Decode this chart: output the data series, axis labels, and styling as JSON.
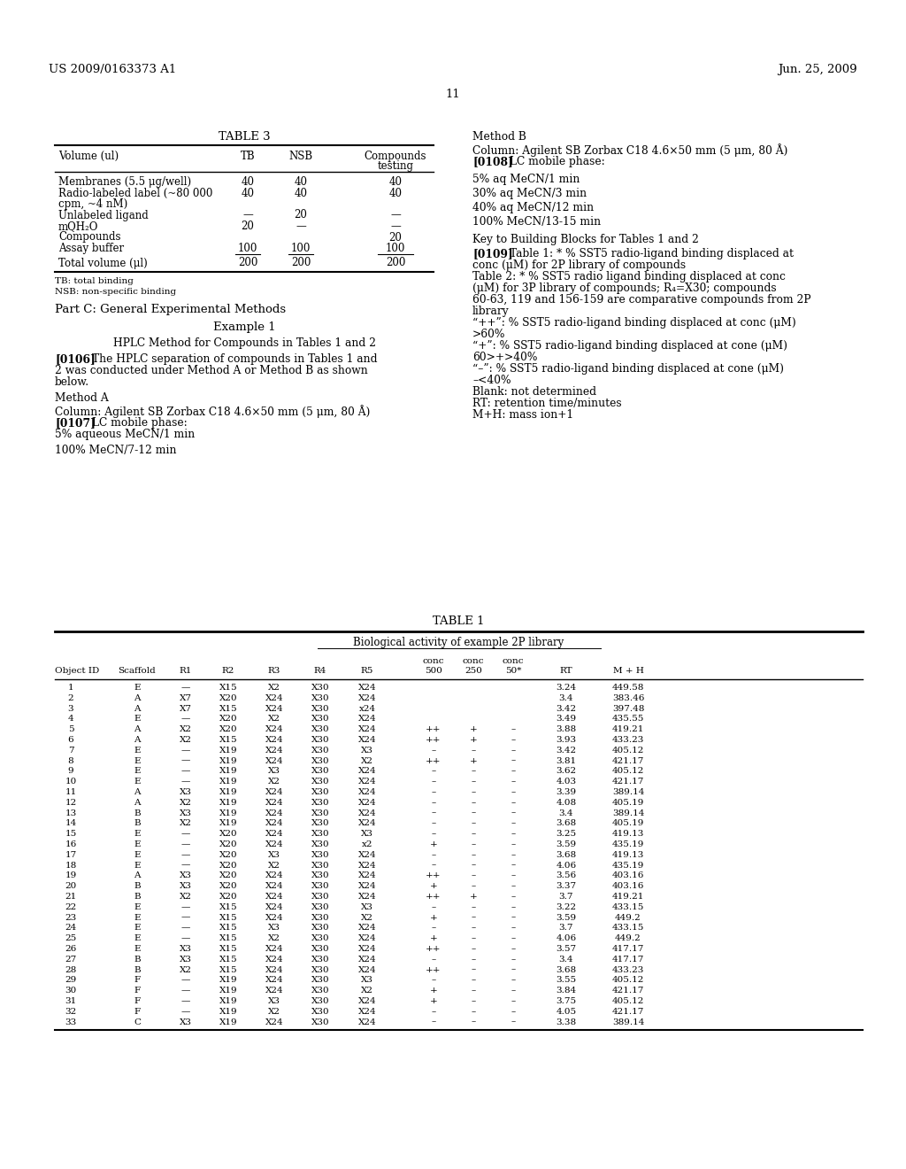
{
  "bg_color": "#ffffff",
  "header_left": "US 2009/0163373 A1",
  "header_right": "Jun. 25, 2009",
  "page_number": "11",
  "table3_title": "TABLE 3",
  "table1_title": "TABLE 1",
  "table1_subtitle": "Biological activity of example 2P library",
  "table1_col_headers": [
    "Object ID",
    "Scaffold",
    "R1",
    "R2",
    "R3",
    "R4",
    "R5",
    "conc\n500",
    "conc\n250",
    "conc\n50*",
    "RT",
    "M + H"
  ],
  "table1_rows": [
    [
      "1",
      "E",
      "—",
      "X15",
      "X2",
      "X30",
      "X24",
      "",
      "",
      "",
      "3.24",
      "449.58"
    ],
    [
      "2",
      "A",
      "X7",
      "X20",
      "X24",
      "X30",
      "X24",
      "",
      "",
      "",
      "3.4",
      "383.46"
    ],
    [
      "3",
      "A",
      "X7",
      "X15",
      "X24",
      "X30",
      "x24",
      "",
      "",
      "",
      "3.42",
      "397.48"
    ],
    [
      "4",
      "E",
      "—",
      "X20",
      "X2",
      "X30",
      "X24",
      "",
      "",
      "",
      "3.49",
      "435.55"
    ],
    [
      "5",
      "A",
      "X2",
      "X20",
      "X24",
      "X30",
      "X24",
      "++",
      "+",
      "–",
      "3.88",
      "419.21"
    ],
    [
      "6",
      "A",
      "X2",
      "X15",
      "X24",
      "X30",
      "X24",
      "++",
      "+",
      "–",
      "3.93",
      "433.23"
    ],
    [
      "7",
      "E",
      "—",
      "X19",
      "X24",
      "X30",
      "X3",
      "–",
      "–",
      "–",
      "3.42",
      "405.12"
    ],
    [
      "8",
      "E",
      "—",
      "X19",
      "X24",
      "X30",
      "X2",
      "++",
      "+",
      "–",
      "3.81",
      "421.17"
    ],
    [
      "9",
      "E",
      "—",
      "X19",
      "X3",
      "X30",
      "X24",
      "–",
      "–",
      "–",
      "3.62",
      "405.12"
    ],
    [
      "10",
      "E",
      "—",
      "X19",
      "X2",
      "X30",
      "X24",
      "–",
      "–",
      "–",
      "4.03",
      "421.17"
    ],
    [
      "11",
      "A",
      "X3",
      "X19",
      "X24",
      "X30",
      "X24",
      "–",
      "–",
      "–",
      "3.39",
      "389.14"
    ],
    [
      "12",
      "A",
      "X2",
      "X19",
      "X24",
      "X30",
      "X24",
      "–",
      "–",
      "–",
      "4.08",
      "405.19"
    ],
    [
      "13",
      "B",
      "X3",
      "X19",
      "X24",
      "X30",
      "X24",
      "–",
      "–",
      "–",
      "3.4",
      "389.14"
    ],
    [
      "14",
      "B",
      "X2",
      "X19",
      "X24",
      "X30",
      "X24",
      "–",
      "–",
      "–",
      "3.68",
      "405.19"
    ],
    [
      "15",
      "E",
      "—",
      "X20",
      "X24",
      "X30",
      "X3",
      "–",
      "–",
      "–",
      "3.25",
      "419.13"
    ],
    [
      "16",
      "E",
      "—",
      "X20",
      "X24",
      "X30",
      "x2",
      "+",
      "–",
      "–",
      "3.59",
      "435.19"
    ],
    [
      "17",
      "E",
      "—",
      "X20",
      "X3",
      "X30",
      "X24",
      "–",
      "–",
      "–",
      "3.68",
      "419.13"
    ],
    [
      "18",
      "E",
      "—",
      "X20",
      "X2",
      "X30",
      "X24",
      "–",
      "–",
      "–",
      "4.06",
      "435.19"
    ],
    [
      "19",
      "A",
      "X3",
      "X20",
      "X24",
      "X30",
      "X24",
      "++",
      "–",
      "–",
      "3.56",
      "403.16"
    ],
    [
      "20",
      "B",
      "X3",
      "X20",
      "X24",
      "X30",
      "X24",
      "+",
      "–",
      "–",
      "3.37",
      "403.16"
    ],
    [
      "21",
      "B",
      "X2",
      "X20",
      "X24",
      "X30",
      "X24",
      "++",
      "+",
      "–",
      "3.7",
      "419.21"
    ],
    [
      "22",
      "E",
      "—",
      "X15",
      "X24",
      "X30",
      "X3",
      "–",
      "–",
      "–",
      "3.22",
      "433.15"
    ],
    [
      "23",
      "E",
      "—",
      "X15",
      "X24",
      "X30",
      "X2",
      "+",
      "–",
      "–",
      "3.59",
      "449.2"
    ],
    [
      "24",
      "E",
      "—",
      "X15",
      "X3",
      "X30",
      "X24",
      "–",
      "–",
      "–",
      "3.7",
      "433.15"
    ],
    [
      "25",
      "E",
      "—",
      "X15",
      "X2",
      "X30",
      "X24",
      "+",
      "–",
      "–",
      "4.06",
      "449.2"
    ],
    [
      "26",
      "E",
      "X3",
      "X15",
      "X24",
      "X30",
      "X24",
      "++",
      "–",
      "–",
      "3.57",
      "417.17"
    ],
    [
      "27",
      "B",
      "X3",
      "X15",
      "X24",
      "X30",
      "X24",
      "–",
      "–",
      "–",
      "3.4",
      "417.17"
    ],
    [
      "28",
      "B",
      "X2",
      "X15",
      "X24",
      "X30",
      "X24",
      "++",
      "–",
      "–",
      "3.68",
      "433.23"
    ],
    [
      "29",
      "F",
      "—",
      "X19",
      "X24",
      "X30",
      "X3",
      "–",
      "–",
      "–",
      "3.55",
      "405.12"
    ],
    [
      "30",
      "F",
      "—",
      "X19",
      "X24",
      "X30",
      "X2",
      "+",
      "–",
      "–",
      "3.84",
      "421.17"
    ],
    [
      "31",
      "F",
      "—",
      "X19",
      "X3",
      "X30",
      "X24",
      "+",
      "–",
      "–",
      "3.75",
      "405.12"
    ],
    [
      "32",
      "F",
      "—",
      "X19",
      "X2",
      "X30",
      "X24",
      "–",
      "–",
      "–",
      "4.05",
      "421.17"
    ],
    [
      "33",
      "C",
      "X3",
      "X19",
      "X24",
      "X30",
      "X24",
      "–",
      "–",
      "–",
      "3.38",
      "389.14"
    ]
  ]
}
